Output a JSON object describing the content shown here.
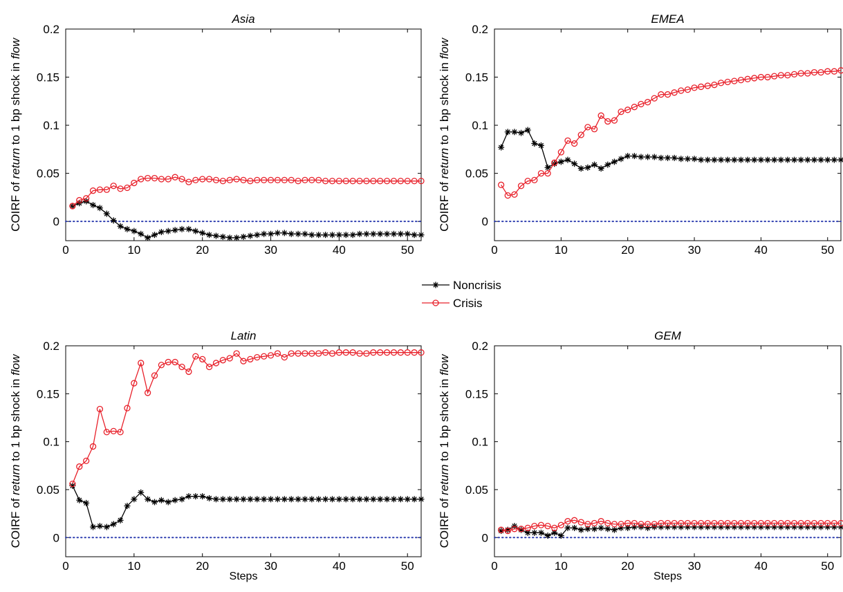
{
  "legend": [
    {
      "label": "Noncrisis",
      "color": "#000000",
      "marker": "asterisk"
    },
    {
      "label": "Crisis",
      "color": "#e8202a",
      "marker": "circle"
    }
  ],
  "zero_line_color": "#2f3fb0",
  "chart_data": [
    {
      "type": "line",
      "title": "Asia",
      "ylabel_parts": [
        "COIRF of ",
        "return",
        " to 1 bp shock in ",
        "flow"
      ],
      "xlabel": "",
      "xlim": [
        0,
        52
      ],
      "ylim": [
        -0.02,
        0.2
      ],
      "xticks": [
        "0",
        "10",
        "20",
        "30",
        "40",
        "50"
      ],
      "yticks": [
        "0",
        "0.05",
        "0.1",
        "0.15",
        "0.2"
      ],
      "x": [
        1,
        2,
        3,
        4,
        5,
        6,
        7,
        8,
        9,
        10,
        11,
        12,
        13,
        14,
        15,
        16,
        17,
        18,
        19,
        20,
        21,
        22,
        23,
        24,
        25,
        26,
        27,
        28,
        29,
        30,
        31,
        32,
        33,
        34,
        35,
        36,
        37,
        38,
        39,
        40,
        41,
        42,
        43,
        44,
        45,
        46,
        47,
        48,
        49,
        50,
        51,
        52
      ],
      "series": [
        {
          "name": "Noncrisis",
          "values": [
            0.016,
            0.019,
            0.021,
            0.017,
            0.014,
            0.008,
            0.001,
            -0.005,
            -0.008,
            -0.01,
            -0.013,
            -0.017,
            -0.014,
            -0.011,
            -0.01,
            -0.009,
            -0.008,
            -0.008,
            -0.01,
            -0.012,
            -0.014,
            -0.015,
            -0.016,
            -0.017,
            -0.017,
            -0.016,
            -0.015,
            -0.014,
            -0.013,
            -0.013,
            -0.012,
            -0.012,
            -0.013,
            -0.013,
            -0.013,
            -0.014,
            -0.014,
            -0.014,
            -0.014,
            -0.014,
            -0.014,
            -0.014,
            -0.013,
            -0.013,
            -0.013,
            -0.013,
            -0.013,
            -0.013,
            -0.013,
            -0.013,
            -0.014,
            -0.014
          ]
        },
        {
          "name": "Crisis",
          "values": [
            0.016,
            0.022,
            0.024,
            0.032,
            0.033,
            0.033,
            0.037,
            0.034,
            0.035,
            0.04,
            0.044,
            0.045,
            0.045,
            0.044,
            0.044,
            0.046,
            0.044,
            0.041,
            0.043,
            0.044,
            0.044,
            0.043,
            0.042,
            0.043,
            0.044,
            0.043,
            0.042,
            0.043,
            0.043,
            0.043,
            0.043,
            0.043,
            0.043,
            0.042,
            0.043,
            0.043,
            0.043,
            0.042,
            0.042,
            0.042,
            0.042,
            0.042,
            0.042,
            0.042,
            0.042,
            0.042,
            0.042,
            0.042,
            0.042,
            0.042,
            0.042,
            0.042
          ]
        }
      ]
    },
    {
      "type": "line",
      "title": "EMEA",
      "ylabel_parts": [
        "COIRF of ",
        "return",
        " to 1 bp shock in ",
        "flow"
      ],
      "xlabel": "",
      "xlim": [
        0,
        52
      ],
      "ylim": [
        -0.02,
        0.2
      ],
      "xticks": [
        "0",
        "10",
        "20",
        "30",
        "40",
        "50"
      ],
      "yticks": [
        "0",
        "0.05",
        "0.1",
        "0.15",
        "0.2"
      ],
      "x": [
        1,
        2,
        3,
        4,
        5,
        6,
        7,
        8,
        9,
        10,
        11,
        12,
        13,
        14,
        15,
        16,
        17,
        18,
        19,
        20,
        21,
        22,
        23,
        24,
        25,
        26,
        27,
        28,
        29,
        30,
        31,
        32,
        33,
        34,
        35,
        36,
        37,
        38,
        39,
        40,
        41,
        42,
        43,
        44,
        45,
        46,
        47,
        48,
        49,
        50,
        51,
        52
      ],
      "series": [
        {
          "name": "Noncrisis",
          "values": [
            0.077,
            0.093,
            0.093,
            0.092,
            0.095,
            0.081,
            0.079,
            0.056,
            0.06,
            0.062,
            0.064,
            0.06,
            0.055,
            0.056,
            0.059,
            0.055,
            0.059,
            0.062,
            0.065,
            0.068,
            0.068,
            0.067,
            0.067,
            0.067,
            0.066,
            0.066,
            0.066,
            0.065,
            0.065,
            0.065,
            0.064,
            0.064,
            0.064,
            0.064,
            0.064,
            0.064,
            0.064,
            0.064,
            0.064,
            0.064,
            0.064,
            0.064,
            0.064,
            0.064,
            0.064,
            0.064,
            0.064,
            0.064,
            0.064,
            0.064,
            0.064,
            0.064
          ]
        },
        {
          "name": "Crisis",
          "values": [
            0.038,
            0.027,
            0.028,
            0.037,
            0.042,
            0.043,
            0.05,
            0.05,
            0.061,
            0.072,
            0.084,
            0.081,
            0.09,
            0.098,
            0.096,
            0.11,
            0.104,
            0.105,
            0.114,
            0.116,
            0.119,
            0.122,
            0.124,
            0.128,
            0.132,
            0.132,
            0.134,
            0.136,
            0.137,
            0.139,
            0.14,
            0.141,
            0.142,
            0.144,
            0.145,
            0.146,
            0.147,
            0.148,
            0.149,
            0.15,
            0.15,
            0.151,
            0.152,
            0.152,
            0.153,
            0.154,
            0.154,
            0.155,
            0.155,
            0.156,
            0.156,
            0.157
          ]
        }
      ]
    },
    {
      "type": "line",
      "title": "Latin",
      "ylabel_parts": [
        "COIRF of ",
        "return",
        " to 1 bp shock in ",
        "flow"
      ],
      "xlabel": "Steps",
      "xlim": [
        0,
        52
      ],
      "ylim": [
        -0.02,
        0.2
      ],
      "xticks": [
        "0",
        "10",
        "20",
        "30",
        "40",
        "50"
      ],
      "yticks": [
        "0",
        "0.05",
        "0.1",
        "0.15",
        "0.2"
      ],
      "x": [
        1,
        2,
        3,
        4,
        5,
        6,
        7,
        8,
        9,
        10,
        11,
        12,
        13,
        14,
        15,
        16,
        17,
        18,
        19,
        20,
        21,
        22,
        23,
        24,
        25,
        26,
        27,
        28,
        29,
        30,
        31,
        32,
        33,
        34,
        35,
        36,
        37,
        38,
        39,
        40,
        41,
        42,
        43,
        44,
        45,
        46,
        47,
        48,
        49,
        50,
        51,
        52
      ],
      "series": [
        {
          "name": "Noncrisis",
          "values": [
            0.054,
            0.039,
            0.036,
            0.011,
            0.012,
            0.011,
            0.014,
            0.018,
            0.033,
            0.04,
            0.047,
            0.04,
            0.037,
            0.039,
            0.037,
            0.039,
            0.04,
            0.043,
            0.043,
            0.043,
            0.041,
            0.04,
            0.04,
            0.04,
            0.04,
            0.04,
            0.04,
            0.04,
            0.04,
            0.04,
            0.04,
            0.04,
            0.04,
            0.04,
            0.04,
            0.04,
            0.04,
            0.04,
            0.04,
            0.04,
            0.04,
            0.04,
            0.04,
            0.04,
            0.04,
            0.04,
            0.04,
            0.04,
            0.04,
            0.04,
            0.04,
            0.04
          ]
        },
        {
          "name": "Crisis",
          "values": [
            0.056,
            0.074,
            0.08,
            0.095,
            0.134,
            0.11,
            0.111,
            0.11,
            0.135,
            0.161,
            0.182,
            0.151,
            0.169,
            0.18,
            0.183,
            0.183,
            0.178,
            0.173,
            0.189,
            0.186,
            0.178,
            0.182,
            0.185,
            0.187,
            0.192,
            0.184,
            0.186,
            0.188,
            0.189,
            0.19,
            0.192,
            0.188,
            0.192,
            0.192,
            0.192,
            0.192,
            0.192,
            0.193,
            0.192,
            0.193,
            0.193,
            0.193,
            0.192,
            0.192,
            0.193,
            0.193,
            0.193,
            0.193,
            0.193,
            0.193,
            0.193,
            0.193
          ]
        }
      ]
    },
    {
      "type": "line",
      "title": "GEM",
      "ylabel_parts": [
        "COIRF of ",
        "return",
        " to 1 bp shock in ",
        "flow"
      ],
      "xlabel": "Steps",
      "xlim": [
        0,
        52
      ],
      "ylim": [
        -0.02,
        0.2
      ],
      "xticks": [
        "0",
        "10",
        "20",
        "30",
        "40",
        "50"
      ],
      "yticks": [
        "0",
        "0.05",
        "0.1",
        "0.15",
        "0.2"
      ],
      "x": [
        1,
        2,
        3,
        4,
        5,
        6,
        7,
        8,
        9,
        10,
        11,
        12,
        13,
        14,
        15,
        16,
        17,
        18,
        19,
        20,
        21,
        22,
        23,
        24,
        25,
        26,
        27,
        28,
        29,
        30,
        31,
        32,
        33,
        34,
        35,
        36,
        37,
        38,
        39,
        40,
        41,
        42,
        43,
        44,
        45,
        46,
        47,
        48,
        49,
        50,
        51,
        52
      ],
      "series": [
        {
          "name": "Noncrisis",
          "values": [
            0.007,
            0.008,
            0.012,
            0.008,
            0.005,
            0.005,
            0.005,
            0.002,
            0.005,
            0.002,
            0.01,
            0.01,
            0.008,
            0.009,
            0.009,
            0.01,
            0.009,
            0.008,
            0.01,
            0.01,
            0.011,
            0.011,
            0.01,
            0.011,
            0.011,
            0.011,
            0.011,
            0.011,
            0.011,
            0.011,
            0.011,
            0.011,
            0.011,
            0.011,
            0.011,
            0.011,
            0.011,
            0.011,
            0.011,
            0.011,
            0.011,
            0.011,
            0.011,
            0.011,
            0.011,
            0.011,
            0.011,
            0.011,
            0.011,
            0.011,
            0.011,
            0.011
          ]
        },
        {
          "name": "Crisis",
          "values": [
            0.008,
            0.007,
            0.009,
            0.009,
            0.01,
            0.012,
            0.013,
            0.012,
            0.01,
            0.013,
            0.017,
            0.018,
            0.016,
            0.014,
            0.015,
            0.017,
            0.015,
            0.014,
            0.014,
            0.015,
            0.015,
            0.014,
            0.014,
            0.014,
            0.015,
            0.015,
            0.015,
            0.015,
            0.015,
            0.015,
            0.015,
            0.015,
            0.015,
            0.015,
            0.015,
            0.015,
            0.015,
            0.015,
            0.015,
            0.015,
            0.015,
            0.015,
            0.015,
            0.015,
            0.015,
            0.015,
            0.015,
            0.015,
            0.015,
            0.015,
            0.015,
            0.015
          ]
        }
      ]
    }
  ]
}
